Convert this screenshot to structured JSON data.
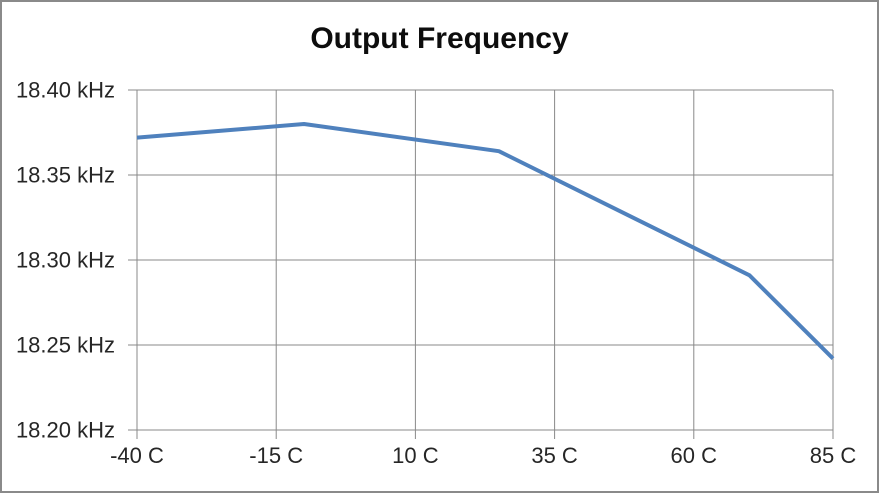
{
  "frame": {
    "background": "#FFFFFF",
    "border_color": "#8A8A8A"
  },
  "chart_data": {
    "type": "line",
    "title": "Output Frequency",
    "xlabel": "",
    "ylabel": "",
    "x_unit": "C",
    "y_unit": "kHz",
    "series": [
      {
        "name": "Output Frequency",
        "x": [
          -40,
          -10,
          25,
          70,
          85
        ],
        "y": [
          18.372,
          18.38,
          18.364,
          18.291,
          18.242
        ],
        "color": "#4F81BD",
        "line_width": 4
      }
    ],
    "xlim": [
      -40,
      85
    ],
    "ylim": [
      18.2,
      18.4
    ],
    "x_ticks": [
      -40,
      -15,
      10,
      35,
      60,
      85
    ],
    "x_tick_labels": [
      "-40 C",
      "-15 C",
      "10 C",
      "35 C",
      "60 C",
      "85 C"
    ],
    "y_ticks": [
      18.2,
      18.25,
      18.3,
      18.35,
      18.4
    ],
    "y_tick_labels": [
      "18.20 kHz",
      "18.25 kHz",
      "18.30 kHz",
      "18.35 kHz",
      "18.40 kHz"
    ],
    "grid": true,
    "grid_color": "#898989",
    "axis_color": "#898989",
    "tick_label_color": "#262626",
    "title_color": "#0D0D0D",
    "legend_position": "none",
    "markers": "none"
  }
}
